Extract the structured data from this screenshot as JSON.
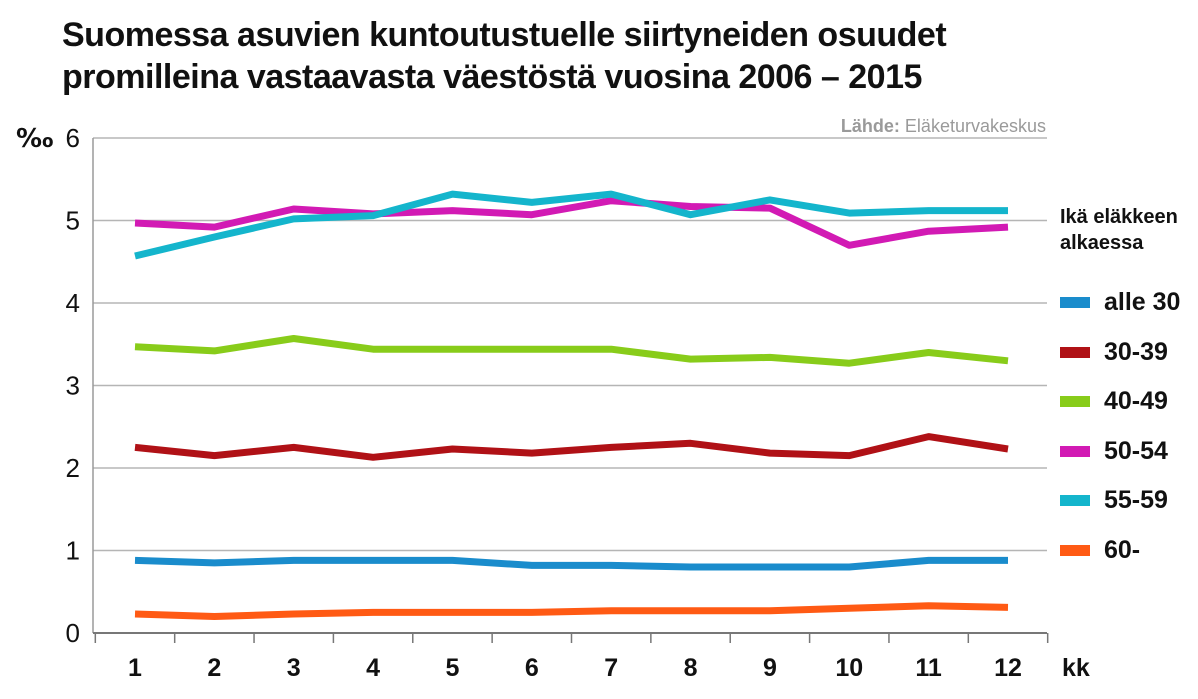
{
  "title": {
    "line1": "Suomessa asuvien kuntoutustuelle siirtyneiden osuudet",
    "line2": "promilleina vastaavasta väestöstä vuosina 2006 – 2015"
  },
  "source": {
    "label": "Lähde:",
    "value": "Eläketurvakeskus"
  },
  "legend": {
    "title_line1": "Ikä eläkkeen",
    "title_line2": "alkaessa"
  },
  "chart_data": {
    "type": "line",
    "ylabel": "‰",
    "xlabel": "kk",
    "x": [
      1,
      2,
      3,
      4,
      5,
      6,
      7,
      8,
      9,
      10,
      11,
      12
    ],
    "ylim": [
      0,
      6
    ],
    "yticks": [
      0,
      1,
      2,
      3,
      4,
      5,
      6
    ],
    "grid": true,
    "legend_position": "right",
    "series": [
      {
        "name": "alle 30",
        "color": "#1a8ccc",
        "values": [
          0.88,
          0.85,
          0.88,
          0.88,
          0.88,
          0.82,
          0.82,
          0.8,
          0.8,
          0.8,
          0.88,
          0.88
        ]
      },
      {
        "name": "30-39",
        "color": "#b01116",
        "values": [
          2.25,
          2.15,
          2.25,
          2.13,
          2.23,
          2.18,
          2.25,
          2.3,
          2.18,
          2.15,
          2.38,
          2.23
        ]
      },
      {
        "name": "40-49",
        "color": "#88cc1a",
        "values": [
          3.47,
          3.42,
          3.57,
          3.44,
          3.44,
          3.44,
          3.44,
          3.32,
          3.34,
          3.27,
          3.4,
          3.3
        ]
      },
      {
        "name": "50-54",
        "color": "#d21ab4",
        "values": [
          4.97,
          4.92,
          5.14,
          5.08,
          5.12,
          5.07,
          5.24,
          5.17,
          5.15,
          4.7,
          4.87,
          4.92
        ]
      },
      {
        "name": "55-59",
        "color": "#14b5cc",
        "values": [
          4.57,
          4.8,
          5.02,
          5.06,
          5.32,
          5.22,
          5.32,
          5.07,
          5.25,
          5.09,
          5.12,
          5.12
        ]
      },
      {
        "name": "60-",
        "color": "#ff5a14",
        "values": [
          0.23,
          0.2,
          0.23,
          0.25,
          0.25,
          0.25,
          0.27,
          0.27,
          0.27,
          0.3,
          0.33,
          0.31
        ]
      }
    ]
  }
}
